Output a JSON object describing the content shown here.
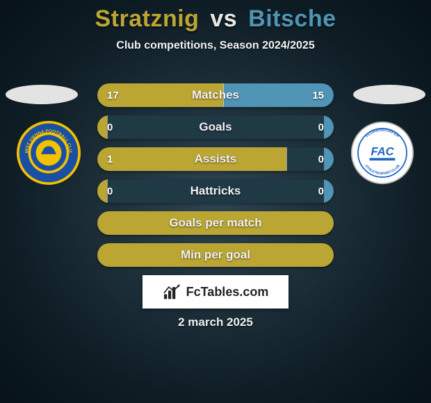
{
  "colors": {
    "p1": "#bba634",
    "p2": "#5094b6",
    "vs": "#e8e8e8",
    "bar_mid": "#1f3945",
    "text": "#f2f2f2"
  },
  "title": {
    "player1": "Stratznig",
    "vs": "vs",
    "player2": "Bitsche"
  },
  "subtitle": "Club competitions, Season 2024/2025",
  "badges": {
    "left": {
      "ring_color": "#f2c200",
      "fill_color": "#1a4fa3",
      "label_top": "FIRST VIENNA",
      "label_bottom": "FOOTBALL CLUB",
      "center_text": "1894"
    },
    "right": {
      "ring_color": "#d9d9d9",
      "fill_color": "#ffffff",
      "accent_color": "#1f65c4",
      "label_left": "FLORIDSDORFER",
      "label_right": "ATHLETIKSPORT-CLUB",
      "center_text": "FAC"
    }
  },
  "stats": [
    {
      "label": "Matches",
      "left_val": "17",
      "right_val": "15",
      "left_pct": 53.1,
      "right_pct": 46.9,
      "show_vals": true
    },
    {
      "label": "Goals",
      "left_val": "0",
      "right_val": "0",
      "left_pct": 4,
      "right_pct": 4,
      "show_vals": true
    },
    {
      "label": "Assists",
      "left_val": "1",
      "right_val": "0",
      "left_pct": 80,
      "right_pct": 4,
      "show_vals": true
    },
    {
      "label": "Hattricks",
      "left_val": "0",
      "right_val": "0",
      "left_pct": 4,
      "right_pct": 4,
      "show_vals": true
    },
    {
      "label": "Goals per match",
      "left_val": "",
      "right_val": "",
      "left_pct": 100,
      "right_pct": 0,
      "show_vals": false
    },
    {
      "label": "Min per goal",
      "left_val": "",
      "right_val": "",
      "left_pct": 100,
      "right_pct": 0,
      "show_vals": false
    }
  ],
  "bar_style": {
    "height": 34,
    "gap": 12,
    "radius": 17,
    "label_fontsize": 17,
    "value_fontsize": 15
  },
  "branding": "FcTables.com",
  "date": "2 march 2025"
}
